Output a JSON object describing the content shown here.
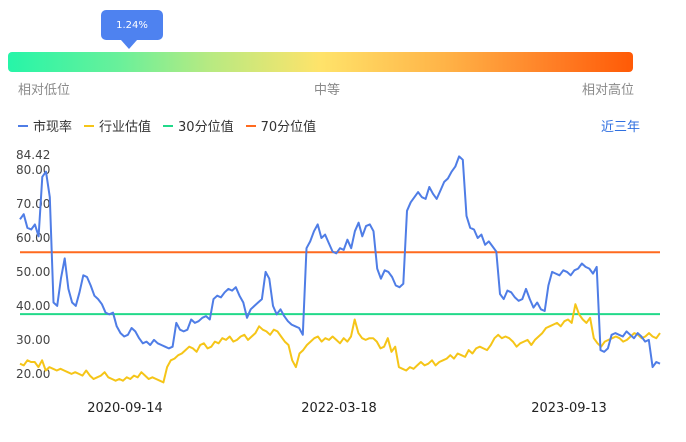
{
  "indicator": {
    "value_label": "1.24%",
    "position_pct": 1.24
  },
  "scale_labels": {
    "low": "相对低位",
    "mid": "中等",
    "high": "相对高位"
  },
  "legend": [
    {
      "label": "市现率",
      "color": "#4f7de6"
    },
    {
      "label": "行业估值",
      "color": "#f5c518"
    },
    {
      "label": "30分位值",
      "color": "#22d98a"
    },
    {
      "label": "70分位值",
      "color": "#ff6a1f"
    }
  ],
  "period_button": "近三年",
  "chart_data": {
    "type": "line",
    "title": "",
    "xlabel": "",
    "ylabel": "",
    "x_tick_labels": [
      "2020-09-14",
      "2022-03-18",
      "2023-09-13"
    ],
    "y_ticks": [
      "84.42",
      "80.00",
      "70.00",
      "60.00",
      "50.00",
      "40.00",
      "30.00",
      "20.00"
    ],
    "ylim": [
      16,
      84.42
    ],
    "reference_lines": [
      {
        "name": "30分位值",
        "value": 37.6,
        "color": "#22d98a"
      },
      {
        "name": "70分位值",
        "value": 55.8,
        "color": "#ff6a1f"
      }
    ],
    "series": [
      {
        "name": "市现率",
        "color": "#4f7de6",
        "values": [
          65.5,
          67.0,
          63.0,
          62.5,
          64.0,
          60.5,
          78.0,
          79.5,
          72.0,
          41.0,
          40.0,
          48.0,
          54.0,
          45.0,
          41.0,
          40.0,
          44.0,
          49.0,
          48.5,
          46.0,
          43.0,
          42.0,
          40.5,
          38.0,
          37.5,
          38.0,
          34.0,
          32.0,
          31.0,
          31.5,
          33.5,
          32.5,
          30.5,
          29.0,
          29.5,
          28.5,
          30.0,
          29.0,
          28.5,
          28.0,
          27.5,
          28.0,
          35.0,
          33.0,
          32.5,
          33.0,
          36.0,
          35.0,
          35.5,
          36.5,
          37.0,
          36.0,
          42.0,
          43.0,
          42.5,
          44.0,
          45.0,
          44.5,
          45.5,
          43.0,
          41.0,
          36.5,
          39.0,
          40.0,
          41.0,
          42.0,
          50.0,
          48.0,
          40.0,
          37.5,
          39.0,
          37.0,
          35.5,
          34.5,
          34.0,
          33.5,
          31.5,
          57.0,
          59.0,
          62.0,
          64.0,
          60.0,
          61.0,
          58.5,
          56.0,
          55.5,
          57.0,
          56.5,
          59.5,
          57.0,
          62.0,
          64.5,
          60.5,
          63.5,
          64.0,
          62.0,
          51.0,
          48.0,
          50.5,
          50.0,
          48.5,
          46.0,
          45.5,
          46.5,
          68.0,
          70.5,
          72.0,
          73.5,
          72.0,
          71.5,
          75.0,
          73.0,
          71.5,
          74.0,
          76.5,
          77.5,
          79.5,
          81.0,
          84.0,
          83.0,
          66.5,
          63.0,
          62.5,
          60.0,
          61.0,
          58.0,
          59.0,
          57.5,
          56.0,
          43.5,
          42.0,
          44.5,
          44.0,
          42.5,
          41.5,
          42.0,
          45.0,
          42.0,
          39.5,
          41.0,
          39.0,
          38.5,
          46.0,
          50.0,
          49.5,
          49.0,
          50.5,
          50.0,
          49.0,
          50.5,
          51.0,
          52.5,
          51.5,
          51.0,
          49.5,
          51.5,
          27.0,
          26.5,
          27.5,
          31.5,
          32.0,
          31.5,
          31.0,
          32.5,
          31.5,
          30.5,
          32.0,
          31.0,
          29.5,
          30.0,
          22.0,
          23.5,
          23.0
        ]
      },
      {
        "name": "行业估值",
        "color": "#f5c518",
        "values": [
          23.0,
          22.5,
          24.0,
          23.5,
          23.5,
          22.0,
          24.0,
          21.0,
          22.0,
          21.5,
          21.0,
          21.5,
          21.0,
          20.5,
          20.0,
          20.5,
          20.0,
          19.5,
          21.0,
          19.5,
          18.5,
          19.0,
          19.5,
          20.5,
          19.0,
          18.5,
          18.0,
          18.5,
          18.0,
          19.0,
          18.5,
          19.5,
          19.0,
          20.5,
          19.5,
          18.5,
          19.0,
          18.5,
          18.0,
          17.5,
          22.0,
          24.0,
          24.5,
          25.5,
          26.0,
          27.0,
          28.0,
          27.5,
          26.5,
          28.5,
          29.0,
          27.5,
          28.0,
          29.5,
          29.0,
          30.5,
          30.0,
          31.0,
          29.5,
          30.0,
          31.0,
          31.5,
          30.0,
          31.0,
          32.0,
          34.0,
          33.0,
          32.5,
          31.5,
          33.0,
          32.5,
          31.0,
          29.5,
          28.5,
          24.0,
          22.0,
          26.0,
          27.0,
          28.5,
          29.5,
          30.5,
          31.0,
          29.5,
          30.5,
          30.0,
          31.0,
          30.0,
          29.0,
          30.5,
          29.5,
          31.0,
          36.0,
          32.0,
          30.5,
          30.0,
          30.5,
          30.5,
          29.5,
          27.5,
          28.0,
          30.5,
          26.5,
          28.0,
          22.0,
          21.5,
          21.0,
          22.0,
          21.5,
          22.5,
          23.5,
          22.5,
          23.0,
          24.0,
          22.5,
          23.5,
          24.0,
          24.5,
          25.5,
          24.5,
          26.0,
          25.5,
          25.0,
          27.0,
          26.0,
          27.5,
          28.0,
          27.5,
          27.0,
          28.5,
          30.5,
          31.5,
          30.5,
          31.0,
          30.5,
          29.5,
          28.0,
          29.0,
          29.5,
          30.0,
          28.5,
          30.0,
          31.0,
          32.0,
          33.5,
          34.0,
          34.5,
          35.0,
          34.0,
          35.5,
          36.0,
          35.0,
          40.5,
          37.5,
          36.0,
          35.0,
          36.5,
          30.5,
          29.0,
          28.0,
          29.5,
          30.0,
          30.5,
          31.0,
          30.5,
          29.5,
          30.0,
          31.0,
          32.0,
          31.5,
          30.5,
          31.0,
          32.0,
          31.0,
          30.5,
          32.0
        ]
      }
    ]
  }
}
